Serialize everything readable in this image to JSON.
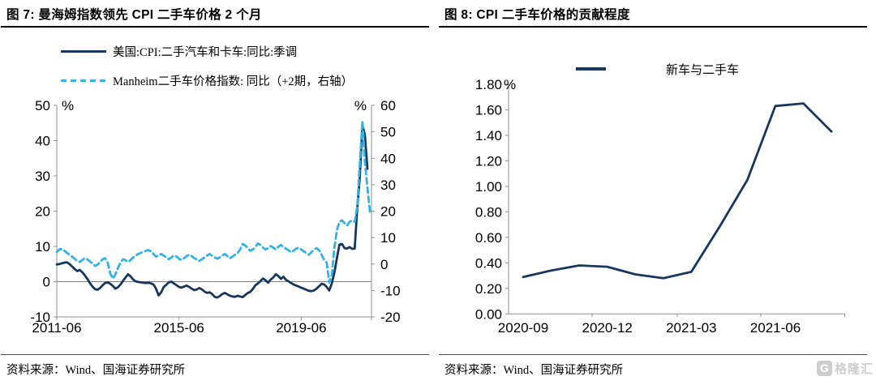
{
  "page": {
    "background": "#ffffff"
  },
  "watermark": {
    "icon": "gelonghui-logo",
    "text": "格隆汇",
    "color": "#cdcdcd"
  },
  "chart_data": [
    {
      "id": "fig7",
      "type": "line",
      "title": "图 7: 曼海姆指数领先 CPI 二手车价格 2 个月",
      "source": "资料来源：Wind、国海证券研究所",
      "frequency": "monthly",
      "x_tick_labels": [
        "2011-06",
        "2015-06",
        "2019-06"
      ],
      "left_axis": {
        "unit": "%",
        "min": -10,
        "max": 50,
        "ticks": [
          "50",
          "40",
          "30",
          "20",
          "10",
          "0",
          "-10"
        ]
      },
      "right_axis": {
        "unit": "%",
        "min": -20,
        "max": 60,
        "ticks": [
          "60",
          "50",
          "40",
          "30",
          "20",
          "10",
          "0",
          "-10",
          "-20"
        ]
      },
      "zero_gridline": true,
      "series": [
        {
          "name": "美国:CPI:二手汽车和卡车:同比:季调",
          "axis": "left",
          "style": "solid",
          "color": "#17375E",
          "start_month": "2011-06",
          "end_month": "2021-08",
          "values": [
            4.9,
            5.0,
            5.2,
            5.4,
            5.5,
            5.0,
            4.3,
            3.6,
            3.0,
            3.3,
            2.7,
            1.8,
            0.8,
            -0.4,
            -1.4,
            -2.1,
            -2.3,
            -1.8,
            -1.0,
            -0.4,
            -0.2,
            -0.6,
            -1.2,
            -2.0,
            -1.6,
            -0.8,
            0.2,
            1.2,
            2.1,
            1.5,
            0.6,
            0.1,
            -0.1,
            -0.2,
            -0.3,
            -0.4,
            -0.3,
            -0.5,
            -0.8,
            -2.0,
            -3.9,
            -3.0,
            -1.5,
            -0.9,
            -0.2,
            0.0,
            -0.5,
            -1.0,
            -1.5,
            -1.7,
            -1.4,
            -1.1,
            -1.5,
            -2.0,
            -2.4,
            -2.2,
            -1.8,
            -2.2,
            -2.8,
            -3.2,
            -3.0,
            -3.5,
            -4.3,
            -4.5,
            -4.1,
            -3.5,
            -3.2,
            -3.6,
            -4.0,
            -4.2,
            -4.3,
            -4.0,
            -4.2,
            -4.4,
            -3.8,
            -3.2,
            -2.9,
            -2.1,
            -1.0,
            -0.5,
            0.2,
            0.9,
            0.4,
            -0.3,
            0.6,
            1.2,
            2.1,
            1.6,
            0.8,
            1.4,
            0.5,
            0.1,
            -0.4,
            -0.8,
            -1.1,
            -1.4,
            -1.7,
            -2.0,
            -2.3,
            -2.6,
            -2.7,
            -2.5,
            -2.0,
            -1.3,
            -0.6,
            -0.8,
            -1.5,
            -2.5,
            -0.5,
            2.5,
            6.7,
            10.5,
            10.7,
            9.5,
            9.4,
            9.8,
            9.3,
            9.4,
            21.0,
            29.7,
            44.5,
            41.5,
            32.0
          ]
        },
        {
          "name": "Manheim二手车价格指数: 同比（+2期，右轴）",
          "axis": "right",
          "style": "dashed",
          "color": "#33B3E5",
          "start_month": "2011-06",
          "end_month": "2021-09",
          "values": [
            4.5,
            5.5,
            5.7,
            5.0,
            4.2,
            3.5,
            2.8,
            2.0,
            1.2,
            0.8,
            1.5,
            2.2,
            1.8,
            1.0,
            0.2,
            -0.7,
            -0.3,
            0.8,
            1.8,
            2.2,
            0.5,
            -3.5,
            -5.5,
            -4.0,
            -1.5,
            0.5,
            1.8,
            1.5,
            0.8,
            1.5,
            2.5,
            3.2,
            3.8,
            4.2,
            4.6,
            5.0,
            5.3,
            4.8,
            3.8,
            2.8,
            3.3,
            3.8,
            3.2,
            2.5,
            1.8,
            2.5,
            3.2,
            2.8,
            2.0,
            1.5,
            2.2,
            3.0,
            3.5,
            3.0,
            2.2,
            1.8,
            1.2,
            1.8,
            2.5,
            3.2,
            3.8,
            3.2,
            2.5,
            2.0,
            2.5,
            3.2,
            3.8,
            3.0,
            2.2,
            2.8,
            3.5,
            4.2,
            5.5,
            7.6,
            7.0,
            6.0,
            5.0,
            5.5,
            6.5,
            7.8,
            7.2,
            6.2,
            5.5,
            6.0,
            6.8,
            6.2,
            5.5,
            6.5,
            7.2,
            6.5,
            5.8,
            5.2,
            4.5,
            5.0,
            5.8,
            6.2,
            5.5,
            4.8,
            4.2,
            3.5,
            4.5,
            5.5,
            6.0,
            5.2,
            3.5,
            1.5,
            0.5,
            -7.0,
            -4.0,
            6.0,
            12.9,
            16.0,
            16.5,
            15.5,
            14.5,
            16.0,
            16.5,
            16.0,
            22.0,
            38.0,
            54.0,
            38.5,
            29.0,
            19.5
          ]
        }
      ]
    },
    {
      "id": "fig8",
      "type": "line",
      "title": "图 8: CPI 二手车价格的贡献程度",
      "source": "资料来源：Wind、国海证券研究所",
      "frequency": "monthly",
      "x_tick_labels": [
        "2020-09",
        "2020-12",
        "2021-03",
        "2021-06"
      ],
      "left_axis": {
        "unit": "%",
        "min": 0,
        "max": 1.8,
        "ticks": [
          "1.80",
          "1.60",
          "1.40",
          "1.20",
          "1.00",
          "0.80",
          "0.60",
          "0.40",
          "0.20",
          "0.00"
        ]
      },
      "zero_gridline": false,
      "series": [
        {
          "name": "新车与二手车",
          "axis": "left",
          "style": "solid",
          "color": "#17375E",
          "months": [
            "2020-09",
            "2020-10",
            "2020-11",
            "2020-12",
            "2021-01",
            "2021-02",
            "2021-03",
            "2021-04",
            "2021-05",
            "2021-06",
            "2021-07",
            "2021-08"
          ],
          "values": [
            0.29,
            0.34,
            0.38,
            0.37,
            0.31,
            0.28,
            0.33,
            0.68,
            1.05,
            1.63,
            1.65,
            1.43
          ]
        }
      ]
    }
  ]
}
